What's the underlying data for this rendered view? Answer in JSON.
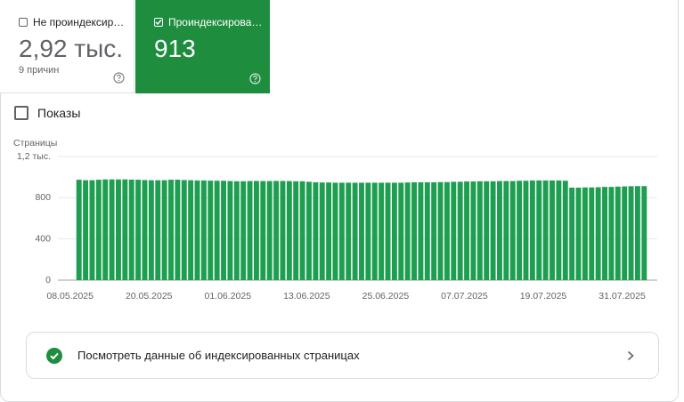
{
  "cards": [
    {
      "label": "Не проиндексир…",
      "value": "2,92 тыс.",
      "sub": "9 причин"
    },
    {
      "label": "Проиндексирова…",
      "value": "913"
    }
  ],
  "toggle": "Показы",
  "chart_data": {
    "type": "bar",
    "y_label": "Страницы",
    "color": "#1e9e50",
    "categories": [
      "08.05.2025",
      null,
      null,
      null,
      null,
      null,
      null,
      null,
      null,
      null,
      null,
      null,
      "20.05.2025",
      null,
      null,
      null,
      null,
      null,
      null,
      null,
      null,
      null,
      null,
      null,
      "01.06.2025",
      null,
      null,
      null,
      null,
      null,
      null,
      null,
      null,
      null,
      null,
      null,
      "13.06.2025",
      null,
      null,
      null,
      null,
      null,
      null,
      null,
      null,
      null,
      null,
      null,
      "25.06.2025",
      null,
      null,
      null,
      null,
      null,
      null,
      null,
      null,
      null,
      null,
      null,
      "07.07.2025",
      null,
      null,
      null,
      null,
      null,
      null,
      null,
      null,
      null,
      null,
      null,
      "19.07.2025",
      null,
      null,
      null,
      null,
      null,
      null,
      null,
      null,
      null,
      null,
      null,
      "31.07.2025",
      null,
      null
    ],
    "values": [
      975,
      970,
      970,
      975,
      978,
      978,
      978,
      978,
      976,
      975,
      972,
      970,
      970,
      970,
      975,
      975,
      972,
      970,
      968,
      968,
      966,
      965,
      965,
      962,
      960,
      960,
      962,
      963,
      962,
      962,
      963,
      963,
      962,
      960,
      960,
      955,
      950,
      948,
      948,
      946,
      946,
      946,
      946,
      946,
      946,
      946,
      946,
      946,
      946,
      946,
      948,
      950,
      950,
      950,
      950,
      952,
      952,
      955,
      955,
      958,
      958,
      960,
      960,
      960,
      962,
      962,
      962,
      965,
      965,
      968,
      968,
      968,
      968,
      968,
      965,
      898,
      898,
      900,
      900,
      902,
      905,
      905,
      908,
      910,
      912,
      913,
      913
    ],
    "ylim": [
      0,
      1200
    ],
    "yticks": [
      0,
      400,
      800,
      {
        "value": 1200,
        "label": "1,2 тыс."
      }
    ],
    "grid": true
  },
  "link": "Посмотреть данные об индексированных страницах"
}
